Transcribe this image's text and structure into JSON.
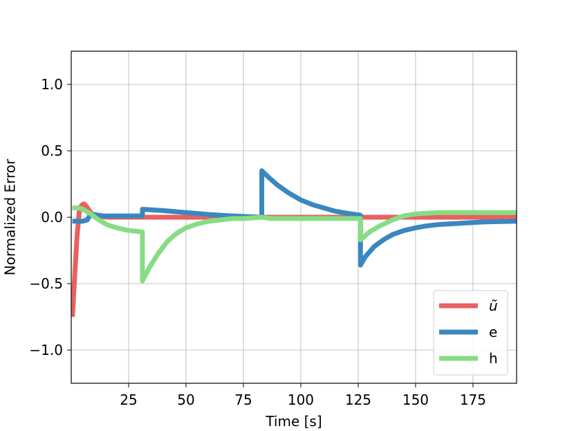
{
  "chart_data": {
    "type": "line",
    "title": "",
    "xlabel": "Time [s]",
    "ylabel": "Normalized Error",
    "xlim": [
      0,
      194
    ],
    "ylim": [
      -1.25,
      1.25
    ],
    "xticks": [
      25,
      50,
      75,
      100,
      125,
      150,
      175
    ],
    "yticks": [
      1.0,
      0.5,
      0.0,
      -0.5,
      -1.0
    ],
    "xtick_labels": [
      "25",
      "50",
      "75",
      "100",
      "125",
      "150",
      "175"
    ],
    "ytick_labels": [
      "1.0",
      "0.5",
      "0.0",
      "−0.5",
      "−1.0"
    ],
    "grid": true,
    "legend_position": "lower-right",
    "series": [
      {
        "name": "ũ",
        "color": "#e8615f",
        "x": [
          0.5,
          1.5,
          2.5,
          3.5,
          4.5,
          5.5,
          6.5,
          7.5,
          8.5,
          9.5,
          11,
          13,
          16,
          20,
          30,
          45,
          60,
          75,
          90,
          105,
          125,
          140,
          160,
          194
        ],
        "y": [
          -0.75,
          -0.45,
          -0.15,
          0.04,
          0.09,
          0.1,
          0.085,
          0.06,
          0.035,
          0.02,
          0.01,
          0.004,
          0.0,
          0.0,
          0.0,
          0.0,
          0.0,
          0.0,
          0.0,
          0.0,
          0.0,
          0.0,
          0.0,
          0.0
        ]
      },
      {
        "name": "e",
        "color": "#3a87bf",
        "x": [
          0.5,
          5,
          7,
          8,
          10,
          14,
          20,
          31,
          31.01,
          40,
          50,
          60,
          70,
          83,
          83.01,
          86,
          90,
          95,
          100,
          105,
          110,
          115,
          120,
          126,
          126.01,
          128,
          132,
          136,
          140,
          145,
          150,
          155,
          160,
          170,
          180,
          194
        ],
        "y": [
          -0.03,
          -0.03,
          -0.02,
          0.01,
          0.02,
          0.01,
          0.01,
          0.01,
          0.06,
          0.05,
          0.035,
          0.02,
          0.01,
          0.0,
          0.35,
          0.3,
          0.24,
          0.18,
          0.13,
          0.095,
          0.07,
          0.045,
          0.03,
          0.015,
          -0.36,
          -0.3,
          -0.22,
          -0.17,
          -0.13,
          -0.1,
          -0.08,
          -0.065,
          -0.055,
          -0.045,
          -0.035,
          -0.03
        ]
      },
      {
        "name": "h",
        "color": "#88dc84",
        "x": [
          0.5,
          3,
          5,
          8,
          12,
          16,
          20,
          25,
          31,
          31.01,
          34,
          38,
          42,
          46,
          50,
          55,
          60,
          65,
          70,
          75,
          83,
          87,
          95,
          105,
          115,
          126,
          126.01,
          130,
          135,
          140,
          145,
          150,
          155,
          160,
          170,
          180,
          194
        ],
        "y": [
          0.07,
          0.07,
          0.06,
          0.03,
          -0.02,
          -0.06,
          -0.08,
          -0.1,
          -0.11,
          -0.48,
          -0.38,
          -0.27,
          -0.18,
          -0.12,
          -0.08,
          -0.05,
          -0.03,
          -0.02,
          -0.01,
          -0.01,
          0.0,
          -0.01,
          -0.01,
          -0.01,
          -0.01,
          -0.01,
          -0.17,
          -0.11,
          -0.06,
          -0.02,
          0.01,
          0.025,
          0.03,
          0.035,
          0.035,
          0.035,
          0.035
        ]
      }
    ]
  }
}
